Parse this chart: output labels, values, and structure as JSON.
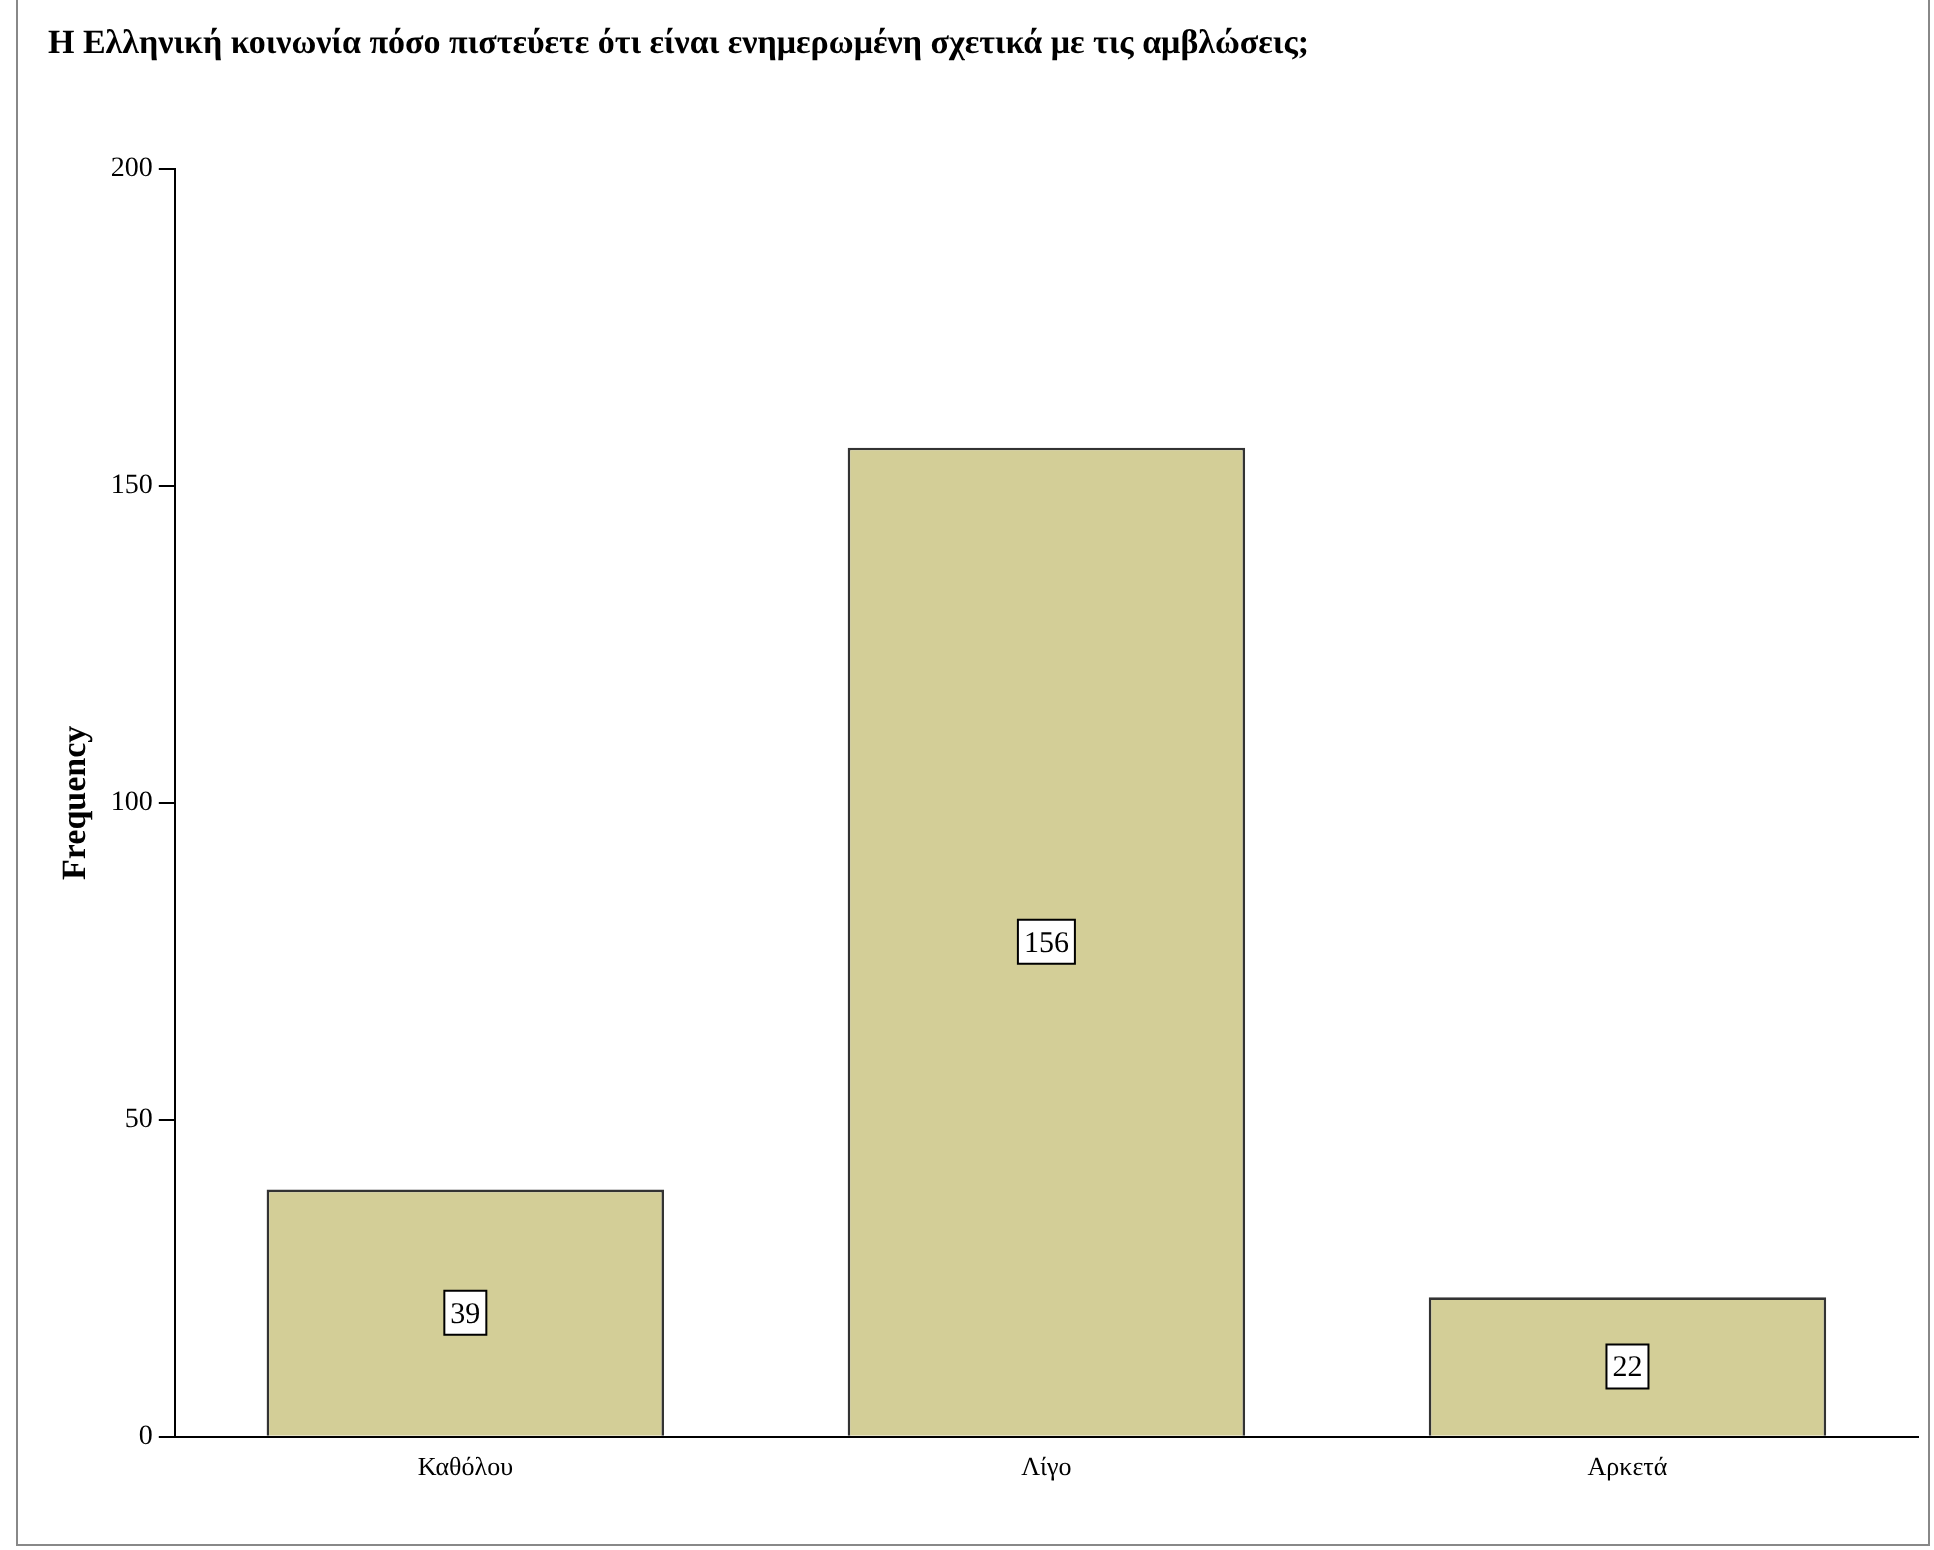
{
  "chart_data": {
    "type": "bar",
    "title": "Η Ελληνική κοινωνία πόσο πιστεύετε ότι είναι ενημερωμένη σχετικά με τις αμβλώσεις;",
    "ylabel": "Frequency",
    "categories": [
      "Καθόλου",
      "Λίγο",
      "Αρκετά"
    ],
    "values": [
      39,
      156,
      22
    ],
    "color": "#d3ce97",
    "ylim": [
      0,
      200
    ],
    "yticks": [
      0,
      50,
      100,
      150,
      200
    ],
    "grid": false,
    "legend": false,
    "data_labels": true
  }
}
